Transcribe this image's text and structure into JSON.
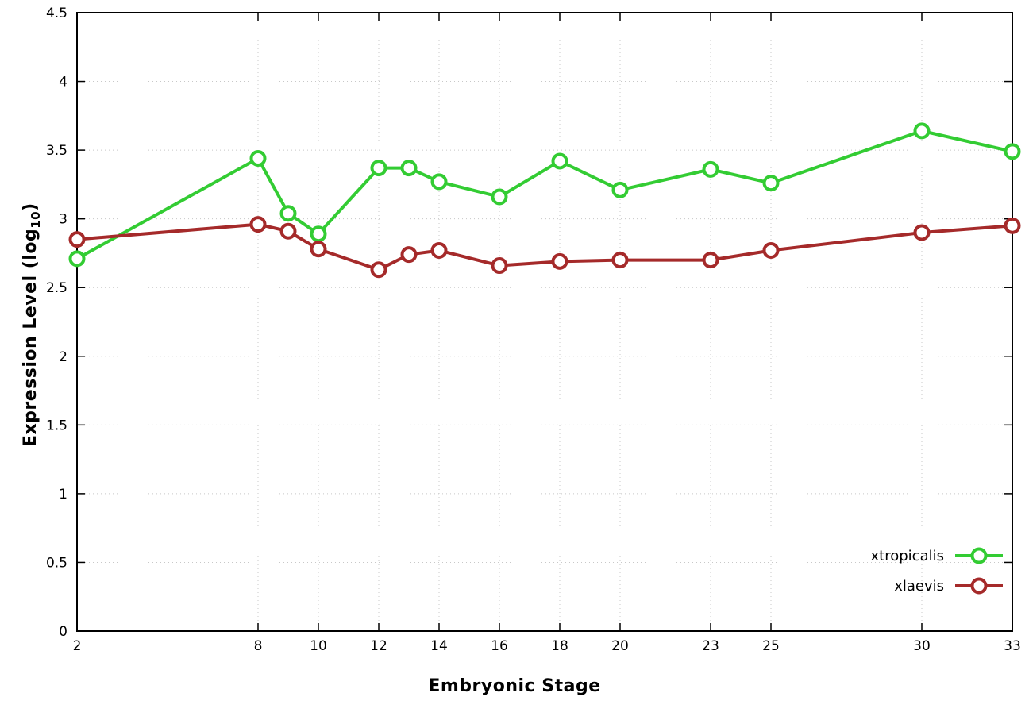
{
  "chart_data": {
    "type": "line",
    "title": "",
    "xlabel": "Embryonic Stage",
    "ylabel_pre": "Expression Level (log",
    "ylabel_sub": "10",
    "ylabel_post": ")",
    "xlim": [
      2,
      33
    ],
    "ylim": [
      0,
      4.5
    ],
    "xticks": [
      2,
      8,
      10,
      12,
      14,
      16,
      18,
      20,
      23,
      25,
      30,
      33
    ],
    "yticks": [
      0,
      0.5,
      1,
      1.5,
      2,
      2.5,
      3,
      3.5,
      4,
      4.5
    ],
    "grid": true,
    "legend_position": "bottom-right",
    "x": [
      2,
      8,
      9,
      10,
      12,
      13,
      14,
      16,
      18,
      20,
      23,
      25,
      30,
      33
    ],
    "series": [
      {
        "name": "xtropicalis",
        "color": "#33cc33",
        "values": [
          2.71,
          3.44,
          3.04,
          2.89,
          3.37,
          3.37,
          3.27,
          3.16,
          3.42,
          3.21,
          3.36,
          3.26,
          3.64,
          3.49
        ]
      },
      {
        "name": "xlaevis",
        "color": "#a52a2a",
        "values": [
          2.85,
          2.96,
          2.91,
          2.78,
          2.63,
          2.74,
          2.77,
          2.66,
          2.69,
          2.7,
          2.7,
          2.77,
          2.9,
          2.95
        ]
      }
    ]
  }
}
